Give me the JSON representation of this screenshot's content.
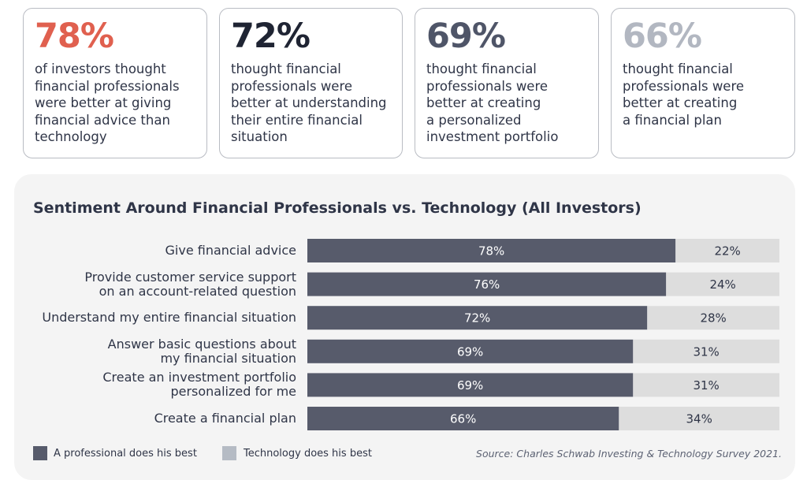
{
  "stat_cards": [
    {
      "value": "78%",
      "color": "#e0604f",
      "description": "of investors thought\nfinancial professionals\nwere better at giving\nfinancial advice than\ntechnology"
    },
    {
      "value": "72%",
      "color": "#1f2433",
      "description": "thought financial\nprofessionals were\nbetter at understanding\ntheir entire financial\nsituation"
    },
    {
      "value": "69%",
      "color": "#4f5568",
      "description": "thought financial\nprofessionals were\nbetter at creating\na personalized\ninvestment portfolio"
    },
    {
      "value": "66%",
      "color": "#b2b7c1",
      "description": "thought financial\nprofessionals were\nbetter at creating\na financial plan"
    }
  ],
  "chart_data": {
    "type": "bar",
    "orientation": "horizontal",
    "stacked": true,
    "title": "Sentiment Around Financial Professionals vs. Technology (All Investors)",
    "categories": [
      "Give financial advice",
      "Provide customer service support\non an account-related question",
      "Understand my entire financial situation",
      "Answer basic questions about\nmy financial situation",
      "Create an investment portfolio\npersonalized for me",
      "Create a financial plan"
    ],
    "series": [
      {
        "name": "A professional does his best",
        "color": "#575b6b",
        "values": [
          78,
          76,
          72,
          69,
          69,
          66
        ],
        "labels": [
          "78%",
          "76%",
          "72%",
          "69%",
          "69%",
          "66%"
        ]
      },
      {
        "name": "Technology does his best",
        "color": "#dddddd",
        "values": [
          22,
          24,
          28,
          31,
          31,
          34
        ],
        "labels": [
          "22%",
          "24%",
          "28%",
          "31%",
          "31%",
          "34%"
        ]
      }
    ],
    "xlim": [
      0,
      100
    ],
    "legend_position": "bottom-left",
    "legend_swatch_colors": [
      "#575b6b",
      "#b5bbc4"
    ]
  },
  "source": "Source: Charles Schwab Investing & Technology Survey 2021."
}
